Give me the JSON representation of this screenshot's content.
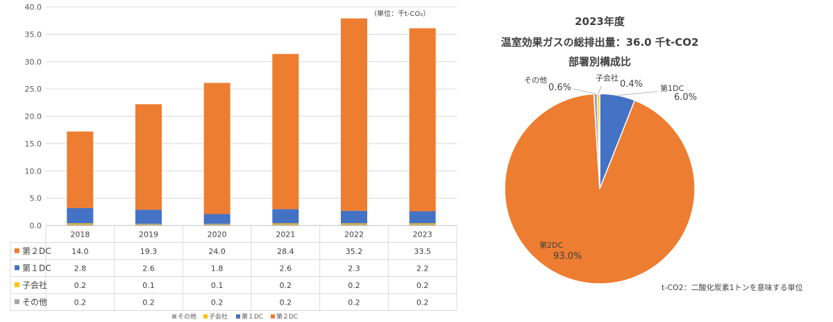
{
  "chart_data": [
    {
      "type": "bar",
      "stacked": true,
      "unit_note": "（単位：千t-CO₂）",
      "categories": [
        "2018",
        "2019",
        "2020",
        "2021",
        "2022",
        "2023"
      ],
      "ylim": [
        0,
        40
      ],
      "yticks": [
        "0.0",
        "5.0",
        "10.0",
        "15.0",
        "20.0",
        "25.0",
        "30.0",
        "35.0",
        "40.0"
      ],
      "grid": true,
      "series": [
        {
          "name": "その他",
          "table_label": "その他",
          "color": "#a5a5a5",
          "values": [
            0.2,
            0.2,
            0.2,
            0.2,
            0.2,
            0.2
          ],
          "labels": [
            "0.2",
            "0.2",
            "0.2",
            "0.2",
            "0.2",
            "0.2"
          ]
        },
        {
          "name": "子会社",
          "table_label": "子会社",
          "color": "#ffc000",
          "values": [
            0.2,
            0.1,
            0.1,
            0.2,
            0.2,
            0.2
          ],
          "labels": [
            "0.2",
            "0.1",
            "0.1",
            "0.2",
            "0.2",
            "0.2"
          ]
        },
        {
          "name": "第１DC",
          "table_label": "第１DC",
          "color": "#4472c4",
          "values": [
            2.8,
            2.6,
            1.8,
            2.6,
            2.3,
            2.2
          ],
          "labels": [
            "2.8",
            "2.6",
            "1.8",
            "2.6",
            "2.3",
            "2.2"
          ]
        },
        {
          "name": "第２DC",
          "table_label": "第２DC",
          "color": "#ed7d31",
          "values": [
            14.0,
            19.3,
            24.0,
            28.4,
            35.2,
            33.5
          ],
          "labels": [
            "14.0",
            "19.3",
            "24.0",
            "28.4",
            "35.2",
            "33.5"
          ]
        }
      ],
      "table_row_order": [
        3,
        2,
        1,
        0
      ],
      "legend_order": [
        0,
        1,
        2,
        3
      ],
      "legend_position": "bottom"
    },
    {
      "type": "pie",
      "title_lines": [
        "2023年度",
        "温室効果ガスの総排出量：36.0 千t-CO2",
        "部署別構成比"
      ],
      "slices": [
        {
          "name": "第1DC",
          "value": 6.0,
          "pct_label": "6.0%",
          "color": "#4472c4"
        },
        {
          "name": "第2DC",
          "value": 93.0,
          "pct_label": "93.0%",
          "color": "#ed7d31"
        },
        {
          "name": "その他",
          "value": 0.6,
          "pct_label": "0.6%",
          "color": "#a5a5a5"
        },
        {
          "name": "子会社",
          "value": 0.4,
          "pct_label": "0.4%",
          "color": "#ffc000"
        }
      ],
      "footnote": "t-CO2：二酸化炭素1トンを意味する単位"
    }
  ]
}
